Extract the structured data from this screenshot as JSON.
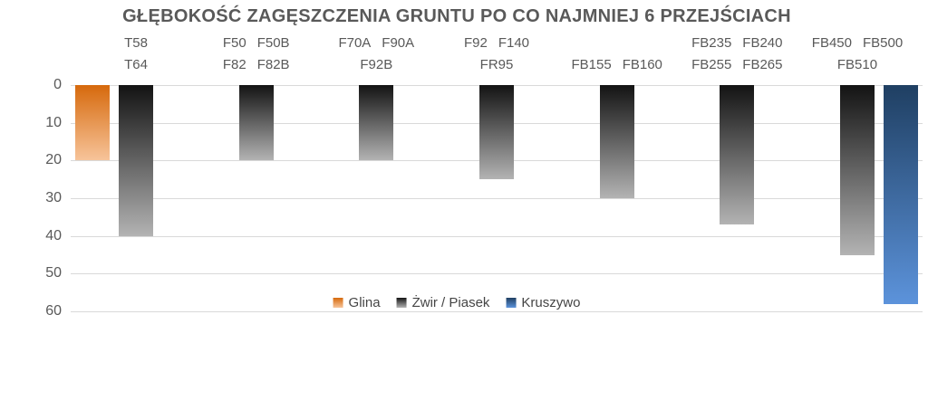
{
  "title": "GŁĘBOKOŚĆ ZAGĘSZCZENIA GRUNTU PO CO NAJMNIEJ 6 PRZEJŚCIACH",
  "colors": {
    "background": "#FFFFFF",
    "grid": "#D9D9D9",
    "title_text": "#595959",
    "axis_text": "#595959",
    "category_text": "#595959",
    "legend_text": "#454545"
  },
  "chart_data": {
    "type": "bar",
    "orientation": "vertical-inverted",
    "title": "GŁĘBOKOŚĆ ZAGĘSZCZENIA GRUNTU PO CO NAJMNIEJ 6 PRZEJŚCIACH",
    "xlabel": "",
    "ylabel": "",
    "ylim": [
      0,
      60
    ],
    "y_ticks": [
      0,
      10,
      20,
      30,
      40,
      50,
      60
    ],
    "grid": true,
    "legend_position": "bottom-center",
    "categories": [
      {
        "row1": [
          "T58"
        ],
        "row2": [
          "T64"
        ]
      },
      {
        "row1": [
          "F50",
          "F50B"
        ],
        "row2": [
          "F82",
          "F82B"
        ]
      },
      {
        "row1": [
          "F70A",
          "F90A"
        ],
        "row2": [
          "F92B"
        ]
      },
      {
        "row1": [
          "F92",
          "F140"
        ],
        "row2": [
          "FR95"
        ]
      },
      {
        "row1": [],
        "row2": [
          "FB155",
          "FB160"
        ]
      },
      {
        "row1": [
          "FB235",
          "FB240"
        ],
        "row2": [
          "FB255",
          "FB265"
        ]
      },
      {
        "row1": [
          "FB450",
          "FB500"
        ],
        "row2": [
          "FB510"
        ]
      }
    ],
    "series": [
      {
        "name": "Glina",
        "color_top": "#D6690C",
        "color_bottom": "#F7C49A",
        "values": [
          20,
          null,
          null,
          null,
          null,
          null,
          null
        ]
      },
      {
        "name": "Żwir / Piasek",
        "color_top": "#131313",
        "color_bottom": "#B3B3B3",
        "values": [
          40,
          20,
          20,
          25,
          30,
          37,
          45
        ]
      },
      {
        "name": "Kruszywo",
        "color_top": "#1F3F62",
        "color_bottom": "#5C93DB",
        "values": [
          null,
          null,
          null,
          null,
          null,
          null,
          58
        ]
      }
    ]
  }
}
